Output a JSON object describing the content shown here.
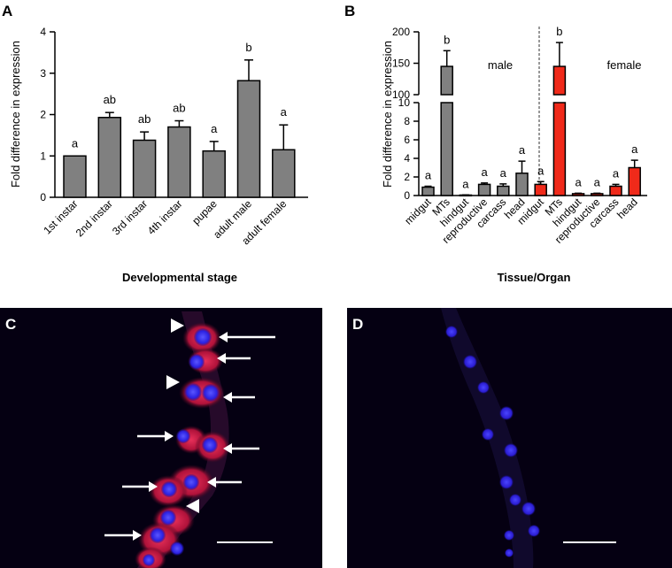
{
  "colors": {
    "gray_bar": "#808080",
    "red_bar": "#f02a1a",
    "micro_bg": "#050012",
    "nuclei": "#3a2bff",
    "cytoplasm": "#d42246"
  },
  "chart_data": [
    {
      "panel": "A",
      "type": "bar",
      "ylabel": "Fold difference in expression",
      "xlabel": "Developmental stage",
      "ylim": [
        0,
        4
      ],
      "yticks": [
        "0",
        "1",
        "2",
        "3",
        "4"
      ],
      "categories": [
        "1st instar",
        "2nd instar",
        "3rd instar",
        "4th instar",
        "pupae",
        "adult male",
        "adult female"
      ],
      "values": [
        1.0,
        1.93,
        1.38,
        1.7,
        1.12,
        2.82,
        1.15
      ],
      "errors": [
        0,
        0.12,
        0.2,
        0.15,
        0.23,
        0.5,
        0.6
      ],
      "letters": [
        "a",
        "ab",
        "ab",
        "ab",
        "a",
        "b",
        "a"
      ]
    },
    {
      "panel": "B",
      "type": "bar",
      "ylabel": "Fold difference in expression",
      "xlabel": "Tissue/Organ",
      "broken_axis": {
        "lower_range": [
          0,
          10
        ],
        "upper_range": [
          100,
          200
        ]
      },
      "yticks_lower": [
        "0",
        "2",
        "4",
        "6",
        "8",
        "10"
      ],
      "yticks_upper": [
        "100",
        "150",
        "200"
      ],
      "groups": [
        {
          "name": "male",
          "color": "gray",
          "categories": [
            "midgut",
            "MTs",
            "hindgut",
            "reproductive",
            "carcass",
            "head"
          ],
          "values": [
            0.9,
            145,
            0.05,
            1.2,
            1.0,
            2.4
          ],
          "errors": [
            0.1,
            25,
            0.02,
            0.15,
            0.25,
            1.3
          ],
          "letters": [
            "a",
            "b",
            "a",
            "a",
            "a",
            "a"
          ]
        },
        {
          "name": "female",
          "color": "red",
          "categories": [
            "midgut",
            "MTs",
            "hindgut",
            "reproductive",
            "carcass",
            "head"
          ],
          "values": [
            1.2,
            145,
            0.2,
            0.2,
            1.0,
            3.0
          ],
          "errors": [
            0.3,
            38,
            0.05,
            0.05,
            0.2,
            0.8
          ],
          "letters": [
            "a",
            "b",
            "a",
            "a",
            "a",
            "a"
          ]
        }
      ]
    }
  ],
  "micrographs": [
    {
      "panel": "C",
      "label": "C"
    },
    {
      "panel": "D",
      "label": "D"
    }
  ]
}
